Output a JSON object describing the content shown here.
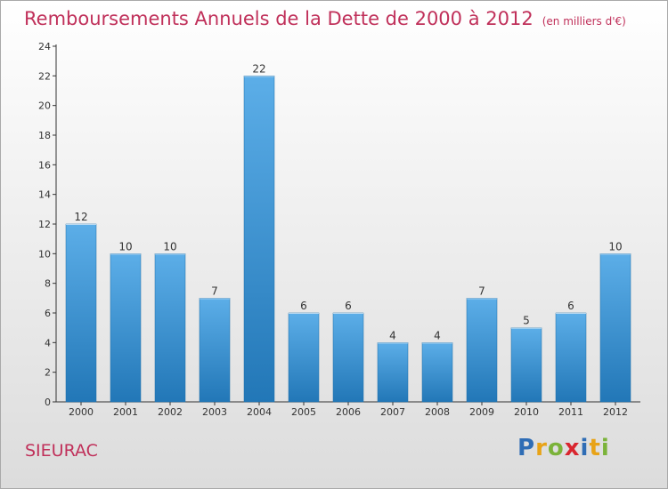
{
  "title": "Remboursements Annuels de la Dette de 2000 à 2012",
  "unit_note": "(en milliers d'€)",
  "commune": "SIEURAC",
  "logo": {
    "letters": [
      "P",
      "r",
      "o",
      "x",
      "i",
      "t",
      "i"
    ],
    "colors": [
      "#2f6db5",
      "#e8a317",
      "#7bb33a",
      "#d9262f",
      "#2f6db5",
      "#e8a317",
      "#7bb33a"
    ]
  },
  "colors": {
    "title": "#c0305a",
    "bar_top": "#5caee8",
    "bar_bottom": "#2277b7",
    "axis": "#333333"
  },
  "chart_data": {
    "type": "bar",
    "title": "Remboursements Annuels de la Dette de 2000 à 2012",
    "xlabel": "",
    "ylabel": "",
    "categories": [
      "2000",
      "2001",
      "2002",
      "2003",
      "2004",
      "2005",
      "2006",
      "2007",
      "2008",
      "2009",
      "2010",
      "2011",
      "2012"
    ],
    "values": [
      12,
      10,
      10,
      7,
      22,
      6,
      6,
      4,
      4,
      7,
      5,
      6,
      10
    ],
    "ylim": [
      0,
      24
    ],
    "yticks": [
      0,
      2,
      4,
      6,
      8,
      10,
      12,
      14,
      16,
      18,
      20,
      22,
      24
    ],
    "grid": false,
    "data_labels": true
  }
}
